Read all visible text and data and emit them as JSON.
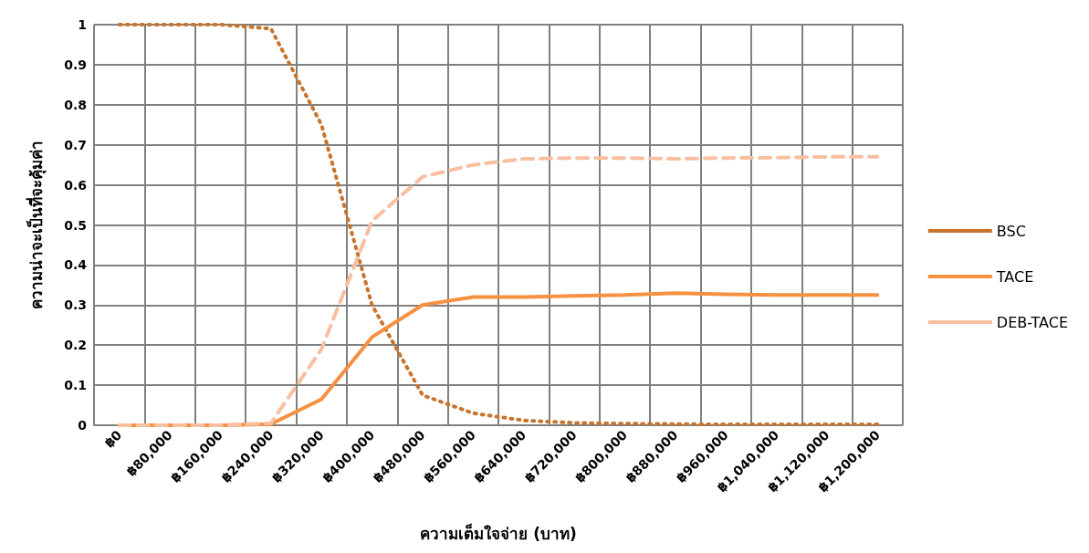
{
  "chart_data": {
    "type": "line",
    "xlabel": "ความเต็มใจจ่าย (บาท)",
    "ylabel": "ความน่าจะเป็นที่จะคุ้มค่า",
    "categories": [
      "฿0",
      "฿80,000",
      "฿160,000",
      "฿240,000",
      "฿320,000",
      "฿400,000",
      "฿480,000",
      "฿560,000",
      "฿640,000",
      "฿720,000",
      "฿800,000",
      "฿880,000",
      "฿960,000",
      "฿1,040,000",
      "฿1,120,000",
      "฿1,200,000"
    ],
    "series": [
      {
        "name": "BSC",
        "color": "#c8742c",
        "line_style": "dotted",
        "values": [
          1,
          1,
          1,
          0.99,
          0.75,
          0.3,
          0.075,
          0.03,
          0.012,
          0.006,
          0.004,
          0.003,
          0.002,
          0.002,
          0.002,
          0.002
        ]
      },
      {
        "name": "TACE",
        "color": "#f59140",
        "line_style": "solid",
        "values": [
          0,
          0,
          0,
          0.003,
          0.065,
          0.22,
          0.3,
          0.32,
          0.32,
          0.323,
          0.325,
          0.33,
          0.327,
          0.325,
          0.325,
          0.325
        ]
      },
      {
        "name": "DEB-TACE",
        "color": "#f8bfa0",
        "line_style": "dashed",
        "values": [
          0,
          0,
          0,
          0.005,
          0.19,
          0.51,
          0.62,
          0.65,
          0.665,
          0.667,
          0.667,
          0.665,
          0.667,
          0.668,
          0.67,
          0.67
        ]
      }
    ],
    "ylim": [
      0,
      1
    ],
    "yticks": [
      0,
      0.1,
      0.2,
      0.3,
      0.4,
      0.5,
      0.6,
      0.7,
      0.8,
      0.9,
      1
    ],
    "grid": true,
    "legend": "right",
    "marker": "none"
  }
}
